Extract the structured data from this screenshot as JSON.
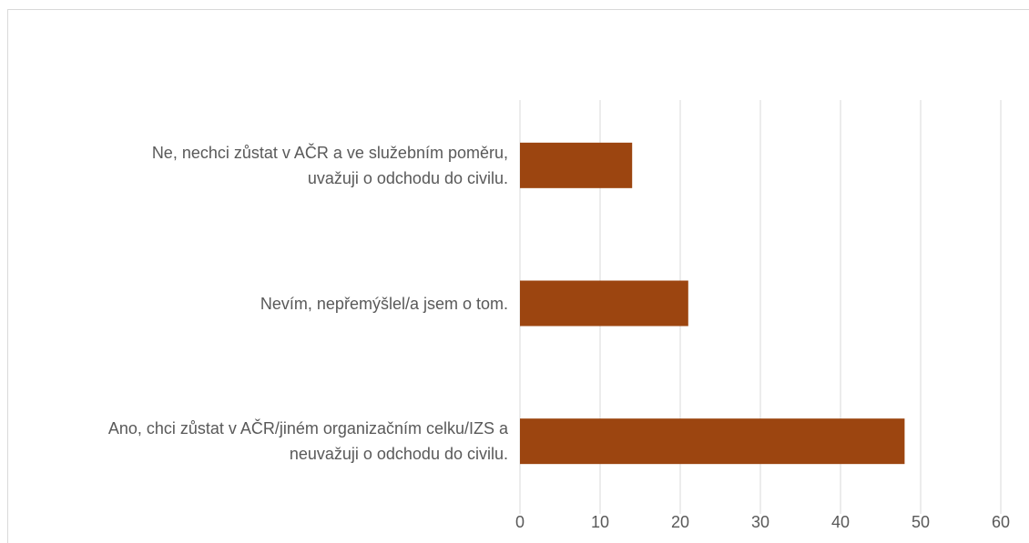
{
  "chart_data": {
    "type": "hbar",
    "categories": [
      "Ne, nechci zůstat v AČR a ve služebním poměru,\nuvažuji o odchodu do civilu.",
      "Nevím, nepřemýšlel/a jsem o tom.",
      "Ano, chci zůstat v AČR/jiném organizačním celku/IZS a\nneuvažuji o odchodu do civilu."
    ],
    "values": [
      14,
      21,
      48
    ],
    "color": "#9c4510",
    "xlim": [
      0,
      60
    ],
    "xticks": [
      0,
      10,
      20,
      30,
      40,
      50,
      60
    ],
    "grid": true
  }
}
